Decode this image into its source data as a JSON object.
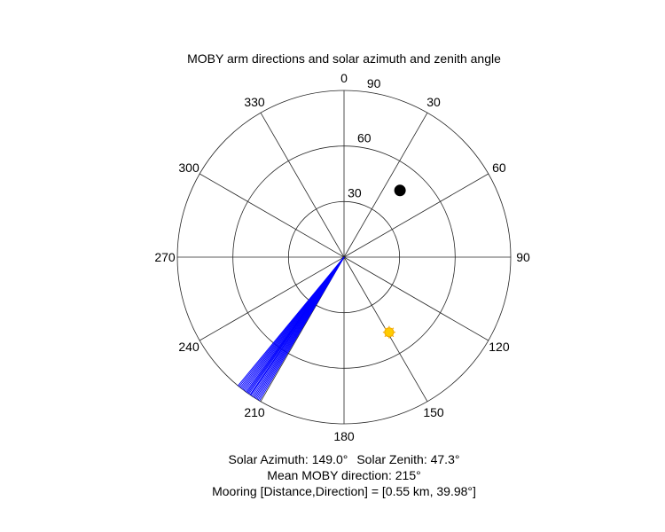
{
  "chart_data": {
    "type": "polar",
    "title": "MOBY arm directions and solar azimuth and zenith angle",
    "angle_ticks": [
      0,
      30,
      60,
      90,
      120,
      150,
      180,
      210,
      240,
      270,
      300,
      330
    ],
    "angle_tick_labels": [
      "0",
      "30",
      "60",
      "90",
      "120",
      "150",
      "180",
      "210",
      "240",
      "270",
      "300",
      "330"
    ],
    "angle_direction": "clockwise",
    "zero_location": "top",
    "radial_ticks": [
      30,
      60,
      90
    ],
    "radial_tick_labels": [
      "30",
      "60",
      "90"
    ],
    "rlim": [
      0,
      90
    ],
    "grid": true,
    "arm_lines": {
      "color": "#0000ff",
      "angles_deg": [
        210.5,
        211,
        211.5,
        212,
        212.5,
        213,
        213.5,
        214,
        214.3,
        214.8,
        215.2,
        215.6,
        216,
        216.5,
        217,
        217.5,
        218,
        218.5,
        219,
        219.5
      ],
      "length": 90
    },
    "points": [
      {
        "name": "",
        "azimuth_deg": 40,
        "zenith_deg": 47,
        "color": "#000000",
        "marker": "filled-circle"
      },
      {
        "name": "",
        "azimuth_deg": 149,
        "zenith_deg": 47.3,
        "color": "#ffcc00",
        "marker": "sun"
      }
    ]
  },
  "captions": {
    "solar_azimuth": "Solar Azimuth: 149.0°",
    "solar_zenith": "Solar Zenith: 47.3°",
    "mean_direction": "Mean MOBY direction: 215°",
    "mooring": "Mooring [Distance,Direction] = [0.55 km, 39.98°]"
  }
}
